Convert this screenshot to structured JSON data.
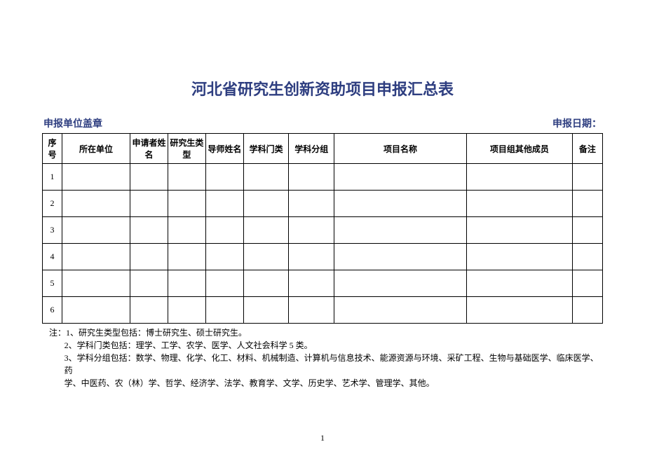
{
  "title": "河北省研究生创新资助项目申报汇总表",
  "header_left": "申报单位盖章",
  "header_right": "申报日期：",
  "columns": {
    "seq": "序号",
    "unit": "所在单位",
    "applicant": "申请者姓名",
    "gradtype": "研究生类型",
    "advisor": "导师姓名",
    "category": "学科门类",
    "group": "学科分组",
    "project": "项目名称",
    "members": "项目组其他成员",
    "note": "备注"
  },
  "rows": [
    "1",
    "2",
    "3",
    "4",
    "5",
    "6"
  ],
  "notes": {
    "n1": "注：1、研究生类型包括：博士研究生、硕士研究生。",
    "n2": "2、学科门类包括：理学、工学、农学、医学、人文社会科学 5 类。",
    "n3a": "3、学科分组包括：数学、物理、化学、化工、材料、机械制造、计算机与信息技术、能源资源与环境、采矿工程、生物与基础医学、临床医学、药",
    "n3b": "学、中医药、农（林）学、哲学、经济学、法学、教育学、文学、历史学、艺术学、管理学、其他。"
  },
  "page": "1",
  "colors": {
    "title_color": "#2e3e80",
    "border_color": "#000000",
    "background": "#ffffff"
  },
  "typography": {
    "title_fontsize": 22,
    "body_fontsize": 12,
    "title_font": "SimHei",
    "body_font": "SimSun"
  }
}
